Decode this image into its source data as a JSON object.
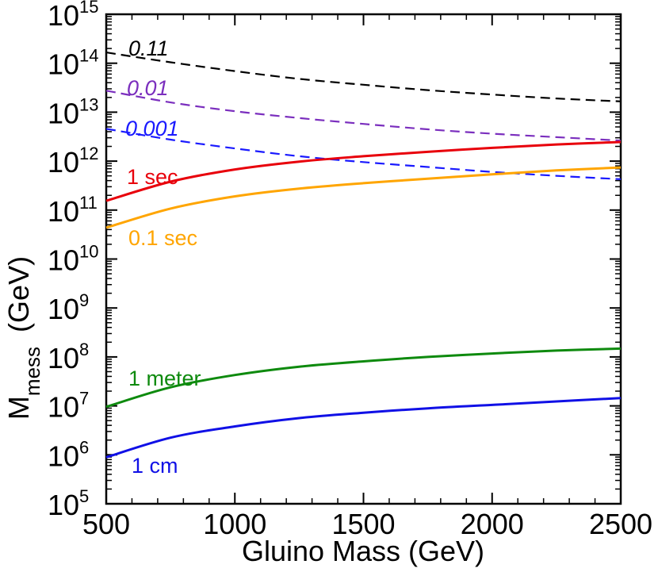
{
  "chart_data": {
    "type": "line",
    "title": "",
    "xlabel": "Gluino Mass  (GeV)",
    "ylabel": {
      "main": "M",
      "sub": "mess",
      "unit": "(GeV)"
    },
    "xlim": [
      500,
      2500
    ],
    "ylim_log10": [
      5,
      15
    ],
    "yscale": "log",
    "x_ticks": [
      500,
      1000,
      1500,
      2000,
      2500
    ],
    "x_tick_labels": [
      "500",
      "1000",
      "1500",
      "2000",
      "2500"
    ],
    "y_ticks_exp": [
      5,
      6,
      7,
      8,
      9,
      10,
      11,
      12,
      13,
      14,
      15
    ],
    "y_tick_base": "10",
    "y_tick_exponents": [
      "5",
      "6",
      "7",
      "8",
      "9",
      "10",
      "11",
      "12",
      "13",
      "14",
      "15"
    ],
    "x": [
      500,
      750,
      1000,
      1250,
      1500,
      1750,
      2000,
      2250,
      2500
    ],
    "series": [
      {
        "name": "0.11",
        "label": "0.11",
        "color": "#000000",
        "dash": true,
        "italic": true,
        "log10_y": [
          14.22,
          14.02,
          13.84,
          13.68,
          13.56,
          13.45,
          13.36,
          13.28,
          13.22
        ]
      },
      {
        "name": "0.01",
        "label": "0.01",
        "color": "#7b2fbe",
        "dash": true,
        "italic": true,
        "log10_y": [
          13.44,
          13.2,
          13.02,
          12.88,
          12.76,
          12.65,
          12.56,
          12.49,
          12.42
        ]
      },
      {
        "name": "0.001",
        "label": "0.001",
        "color": "#1a1aff",
        "dash": true,
        "italic": true,
        "log10_y": [
          12.66,
          12.44,
          12.26,
          12.1,
          11.98,
          11.88,
          11.78,
          11.7,
          11.63
        ]
      },
      {
        "name": "1 sec",
        "label": "1 sec",
        "color": "#e8000b",
        "dash": false,
        "italic": false,
        "log10_y": [
          11.19,
          11.58,
          11.83,
          11.99,
          12.1,
          12.19,
          12.27,
          12.34,
          12.39
        ]
      },
      {
        "name": "0.1 sec",
        "label": "0.1 sec",
        "color": "#ffa500",
        "dash": false,
        "italic": false,
        "log10_y": [
          10.64,
          11.03,
          11.28,
          11.44,
          11.55,
          11.64,
          11.73,
          11.81,
          11.87
        ]
      },
      {
        "name": "1 meter",
        "label": "1 meter",
        "color": "#0e8a0e",
        "dash": false,
        "italic": false,
        "log10_y": [
          6.98,
          7.38,
          7.63,
          7.8,
          7.91,
          8.0,
          8.07,
          8.13,
          8.17
        ]
      },
      {
        "name": "1 cm",
        "label": "1 cm",
        "color": "#1010e6",
        "dash": false,
        "italic": false,
        "log10_y": [
          5.95,
          6.35,
          6.58,
          6.75,
          6.86,
          6.95,
          7.02,
          7.09,
          7.16
        ]
      }
    ]
  }
}
